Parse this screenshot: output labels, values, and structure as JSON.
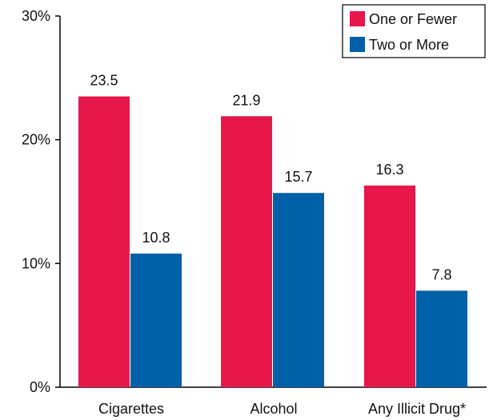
{
  "chart_data": {
    "type": "bar",
    "categories": [
      "Cigarettes",
      "Alcohol",
      "Any Illicit Drug*"
    ],
    "series": [
      {
        "name": "One or Fewer",
        "values": [
          23.5,
          21.9,
          16.3
        ],
        "color": "#e8174b"
      },
      {
        "name": "Two or More",
        "values": [
          10.8,
          15.7,
          7.8
        ],
        "color": "#0060a8"
      }
    ],
    "data_labels": [
      [
        "23.5",
        "21.9",
        "16.3"
      ],
      [
        "10.8",
        "15.7",
        "7.8"
      ]
    ],
    "y_ticks": [
      {
        "value": 0,
        "label": "0%"
      },
      {
        "value": 10,
        "label": "10%"
      },
      {
        "value": 20,
        "label": "20%"
      },
      {
        "value": 30,
        "label": "30%"
      }
    ],
    "ylim": [
      0,
      30
    ],
    "grid": false,
    "legend_position": "top-right",
    "title": "",
    "xlabel": "",
    "ylabel": ""
  }
}
